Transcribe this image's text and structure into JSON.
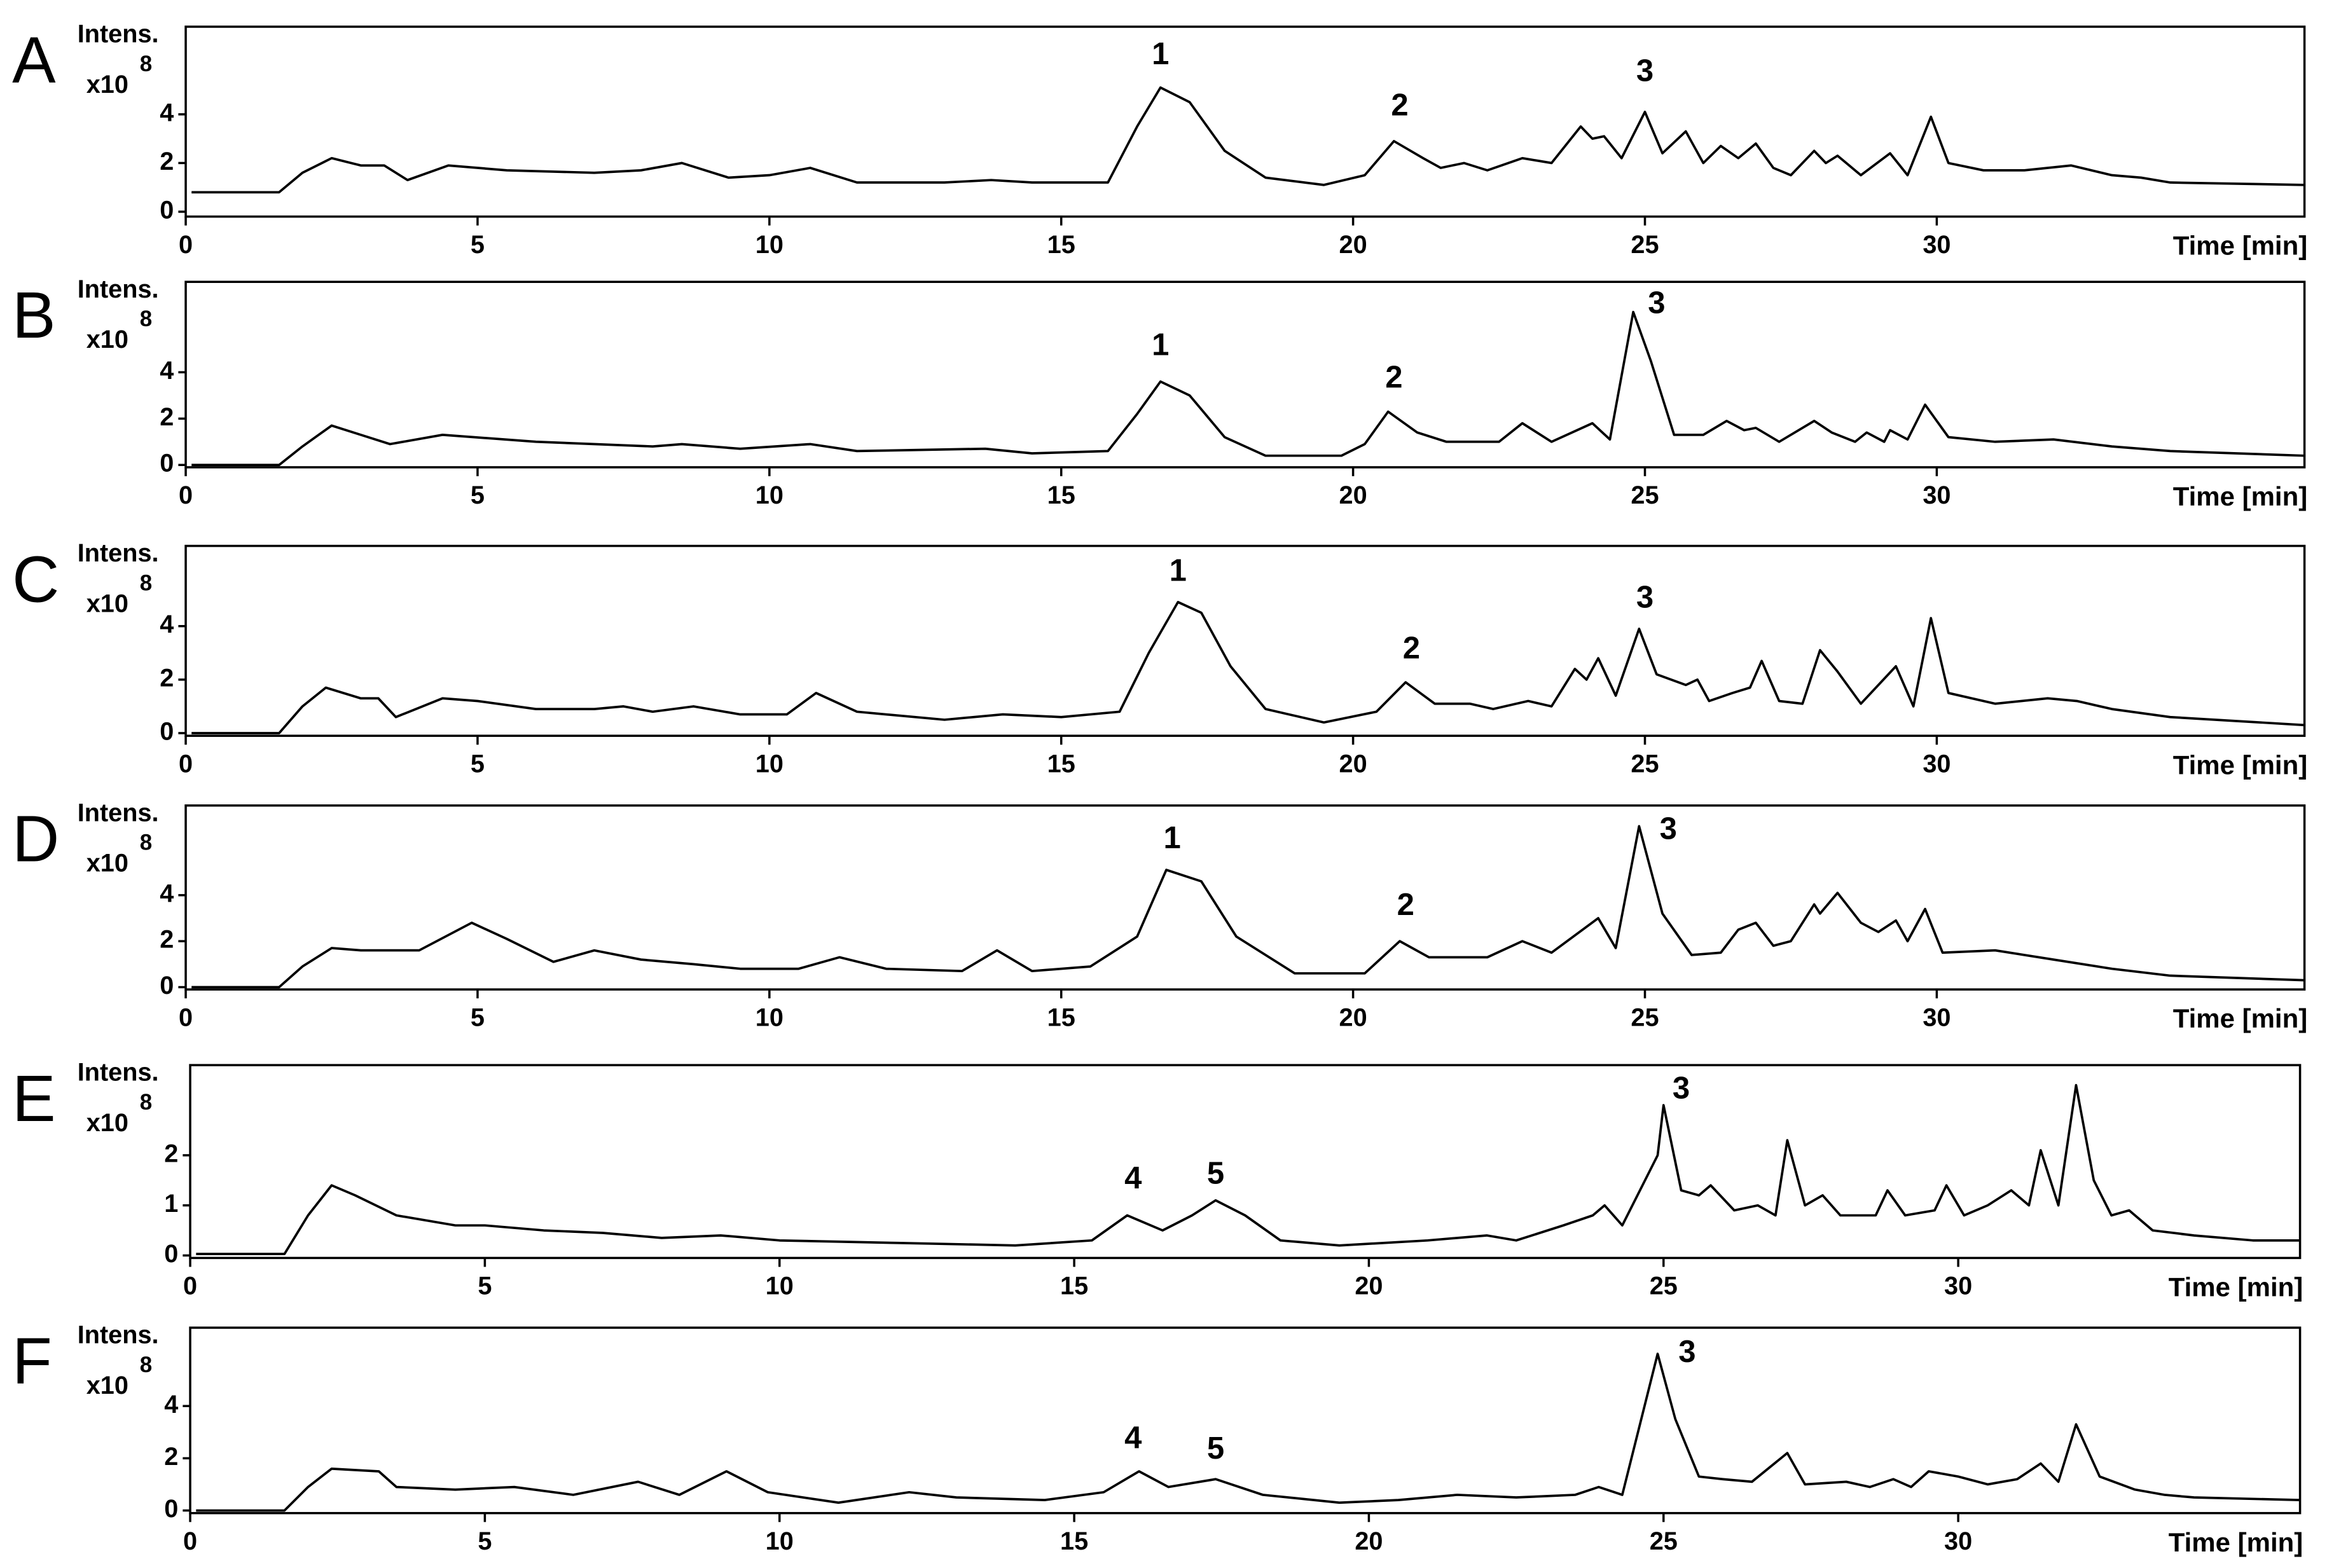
{
  "chart_data": [
    {
      "type": "line",
      "panel_label": "A",
      "y_label": "Intens.",
      "y_unit_base": "x10",
      "y_unit_exponent": "8",
      "x_label": "Time [min]",
      "x": [
        0.1,
        1.6,
        2.0,
        2.5,
        3.0,
        3.4,
        3.8,
        4.5,
        5.5,
        7,
        7.8,
        8.5,
        9.3,
        10,
        10.7,
        11.5,
        13,
        13.8,
        14.5,
        15.8,
        16.3,
        16.7,
        17.2,
        17.8,
        18.5,
        19.5,
        20.2,
        20.7,
        21.2,
        21.5,
        21.9,
        22.3,
        22.9,
        23.4,
        23.9,
        24.1,
        24.3,
        24.6,
        25.0,
        25.3,
        25.7,
        26.0,
        26.3,
        26.6,
        26.9,
        27.2,
        27.5,
        27.9,
        28.1,
        28.3,
        28.7,
        29.2,
        29.5,
        29.9,
        30.2,
        30.8,
        31.5,
        32.3,
        33,
        33.5,
        34,
        36.3
      ],
      "values": [
        0.8,
        0.8,
        1.6,
        2.2,
        1.9,
        1.9,
        1.3,
        1.9,
        1.7,
        1.6,
        1.7,
        2.0,
        1.4,
        1.5,
        1.8,
        1.2,
        1.2,
        1.3,
        1.2,
        1.2,
        3.5,
        5.1,
        4.5,
        2.5,
        1.4,
        1.1,
        1.5,
        2.9,
        2.2,
        1.8,
        2.0,
        1.7,
        2.2,
        2.0,
        3.5,
        3.0,
        3.1,
        2.2,
        4.1,
        2.4,
        3.3,
        2.0,
        2.7,
        2.2,
        2.8,
        1.8,
        1.5,
        2.5,
        2.0,
        2.3,
        1.5,
        2.4,
        1.5,
        3.9,
        2.0,
        1.7,
        1.7,
        1.9,
        1.5,
        1.4,
        1.2,
        1.1
      ],
      "color": "#000000",
      "xlim": [
        0,
        36.3
      ],
      "ylim": [
        -0.2,
        7.6
      ],
      "xticks": [
        0,
        5,
        10,
        15,
        20,
        25,
        30
      ],
      "yticks": [
        0,
        2,
        4
      ],
      "annotations": [
        {
          "text": "1",
          "x": 16.7,
          "y": 6.4
        },
        {
          "text": "2",
          "x": 20.8,
          "y": 4.3
        },
        {
          "text": "3",
          "x": 25.0,
          "y": 5.7
        }
      ]
    },
    {
      "type": "line",
      "panel_label": "B",
      "y_label": "Intens.",
      "y_unit_base": "x10",
      "y_unit_exponent": "8",
      "x_label": "Time [min]",
      "x": [
        0.1,
        1.6,
        2.0,
        2.5,
        3.0,
        3.5,
        4.4,
        6,
        8,
        8.5,
        9.5,
        10.7,
        11.5,
        13.7,
        14.5,
        15.8,
        16.3,
        16.7,
        17.2,
        17.8,
        18.5,
        19.8,
        20.2,
        20.6,
        21.1,
        21.6,
        22.5,
        22.9,
        23.4,
        24.1,
        24.4,
        24.8,
        25.1,
        25.5,
        26.0,
        26.4,
        26.7,
        26.9,
        27.3,
        27.9,
        28.2,
        28.6,
        28.8,
        29.1,
        29.2,
        29.5,
        29.8,
        30.2,
        31,
        32,
        33,
        34,
        36.3
      ],
      "values": [
        0,
        0,
        0.8,
        1.7,
        1.3,
        0.9,
        1.3,
        1.0,
        0.8,
        0.9,
        0.7,
        0.9,
        0.6,
        0.7,
        0.5,
        0.6,
        2.2,
        3.6,
        3.0,
        1.2,
        0.4,
        0.4,
        0.9,
        2.3,
        1.4,
        1.0,
        1.0,
        1.8,
        1.0,
        1.8,
        1.1,
        6.6,
        4.5,
        1.3,
        1.3,
        1.9,
        1.5,
        1.6,
        1.0,
        1.9,
        1.4,
        1.0,
        1.4,
        1.0,
        1.5,
        1.1,
        2.6,
        1.2,
        1.0,
        1.1,
        0.8,
        0.6,
        0.4
      ],
      "color": "#000000",
      "xlim": [
        0,
        36.3
      ],
      "ylim": [
        -0.1,
        7.9
      ],
      "xticks": [
        0,
        5,
        10,
        15,
        20,
        25,
        30
      ],
      "yticks": [
        0,
        2,
        4
      ],
      "annotations": [
        {
          "text": "1",
          "x": 16.7,
          "y": 5.1
        },
        {
          "text": "2",
          "x": 20.7,
          "y": 3.7
        },
        {
          "text": "3",
          "x": 25.2,
          "y": 6.9
        }
      ]
    },
    {
      "type": "line",
      "panel_label": "C",
      "y_label": "Intens.",
      "y_unit_base": "x10",
      "y_unit_exponent": "8",
      "x_label": "Time [min]",
      "x": [
        0.1,
        1.6,
        2.0,
        2.4,
        3.0,
        3.3,
        3.6,
        4.4,
        5,
        6,
        7,
        7.5,
        8,
        8.7,
        9.5,
        10.3,
        10.8,
        11.5,
        13,
        14,
        15,
        16.0,
        16.5,
        17.0,
        17.4,
        17.9,
        18.5,
        19.5,
        20.4,
        20.9,
        21.4,
        22.0,
        22.4,
        23.0,
        23.4,
        23.8,
        24.0,
        24.2,
        24.5,
        24.9,
        25.2,
        25.7,
        25.9,
        26.1,
        26.5,
        26.8,
        27.0,
        27.3,
        27.7,
        28.0,
        28.3,
        28.7,
        29.3,
        29.6,
        29.9,
        30.2,
        31,
        31.9,
        32.4,
        33,
        34,
        36.3
      ],
      "values": [
        0,
        0,
        1.0,
        1.7,
        1.3,
        1.3,
        0.6,
        1.3,
        1.2,
        0.9,
        0.9,
        1.0,
        0.8,
        1.0,
        0.7,
        0.7,
        1.5,
        0.8,
        0.5,
        0.7,
        0.6,
        0.8,
        3.0,
        4.9,
        4.5,
        2.5,
        0.9,
        0.4,
        0.8,
        1.9,
        1.1,
        1.1,
        0.9,
        1.2,
        1.0,
        2.4,
        2.0,
        2.8,
        1.4,
        3.9,
        2.2,
        1.8,
        2.0,
        1.2,
        1.5,
        1.7,
        2.7,
        1.2,
        1.1,
        3.1,
        2.3,
        1.1,
        2.5,
        1.0,
        4.3,
        1.5,
        1.1,
        1.3,
        1.2,
        0.9,
        0.6,
        0.3
      ],
      "color": "#000000",
      "xlim": [
        0,
        36.3
      ],
      "ylim": [
        -0.1,
        7.0
      ],
      "xticks": [
        0,
        5,
        10,
        15,
        20,
        25,
        30
      ],
      "yticks": [
        0,
        2,
        4
      ],
      "annotations": [
        {
          "text": "1",
          "x": 17.0,
          "y": 6.0
        },
        {
          "text": "2",
          "x": 21.0,
          "y": 3.1
        },
        {
          "text": "3",
          "x": 25.0,
          "y": 5.0
        }
      ]
    },
    {
      "type": "line",
      "panel_label": "D",
      "y_label": "Intens.",
      "y_unit_base": "x10",
      "y_unit_exponent": "8",
      "x_label": "Time [min]",
      "x": [
        0.1,
        1.6,
        2.0,
        2.5,
        3.0,
        4.0,
        4.9,
        5.5,
        6.3,
        7.0,
        7.8,
        8.7,
        9.5,
        10.5,
        11.2,
        12,
        13.3,
        13.9,
        14.5,
        15.5,
        16.3,
        16.8,
        17.4,
        18,
        19,
        20.2,
        20.8,
        21.3,
        22.3,
        22.9,
        23.4,
        24.2,
        24.5,
        24.9,
        25.3,
        25.8,
        26.3,
        26.6,
        26.9,
        27.2,
        27.5,
        27.9,
        28.0,
        28.3,
        28.7,
        29.0,
        29.3,
        29.5,
        29.8,
        30.1,
        31,
        32,
        33,
        34,
        36.3
      ],
      "values": [
        0,
        0,
        0.9,
        1.7,
        1.6,
        1.6,
        2.8,
        2.1,
        1.1,
        1.6,
        1.2,
        1.0,
        0.8,
        0.8,
        1.3,
        0.8,
        0.7,
        1.6,
        0.7,
        0.9,
        2.2,
        5.1,
        4.6,
        2.2,
        0.6,
        0.6,
        2.0,
        1.3,
        1.3,
        2.0,
        1.5,
        3.0,
        1.7,
        7.0,
        3.2,
        1.4,
        1.5,
        2.5,
        2.8,
        1.8,
        2.0,
        3.6,
        3.2,
        4.1,
        2.8,
        2.4,
        2.9,
        2.0,
        3.4,
        1.5,
        1.6,
        1.2,
        0.8,
        0.5,
        0.3
      ],
      "color": "#000000",
      "xlim": [
        0,
        36.3
      ],
      "ylim": [
        -0.1,
        7.9
      ],
      "xticks": [
        0,
        5,
        10,
        15,
        20,
        25,
        30
      ],
      "yticks": [
        0,
        2,
        4
      ],
      "annotations": [
        {
          "text": "1",
          "x": 16.9,
          "y": 6.4
        },
        {
          "text": "2",
          "x": 20.9,
          "y": 3.5
        },
        {
          "text": "3",
          "x": 25.4,
          "y": 6.8
        }
      ]
    },
    {
      "type": "line",
      "panel_label": "E",
      "y_label": "Intens.",
      "y_unit_base": "x10",
      "y_unit_exponent": "8",
      "x_label": "Time [min]",
      "x": [
        0.1,
        1.6,
        2.0,
        2.4,
        2.8,
        3.5,
        4.5,
        5,
        6,
        7,
        8,
        9,
        10,
        12,
        14,
        15.3,
        15.9,
        16.5,
        17.0,
        17.4,
        17.9,
        18.5,
        19.5,
        21,
        22,
        22.5,
        23.3,
        23.8,
        24.0,
        24.3,
        24.9,
        25.0,
        25.3,
        25.6,
        25.8,
        26.2,
        26.6,
        26.9,
        27.1,
        27.4,
        27.7,
        28.0,
        28.6,
        28.8,
        29.1,
        29.6,
        29.8,
        30.1,
        30.5,
        30.9,
        31.2,
        31.4,
        31.7,
        32.0,
        32.3,
        32.6,
        32.9,
        33.3,
        34,
        35,
        35.8
      ],
      "values": [
        0.03,
        0.03,
        0.8,
        1.4,
        1.2,
        0.8,
        0.6,
        0.6,
        0.5,
        0.45,
        0.35,
        0.4,
        0.3,
        0.25,
        0.2,
        0.3,
        0.8,
        0.5,
        0.8,
        1.1,
        0.8,
        0.3,
        0.2,
        0.3,
        0.4,
        0.3,
        0.6,
        0.8,
        1.0,
        0.6,
        2.0,
        3.0,
        1.3,
        1.2,
        1.4,
        0.9,
        1.0,
        0.8,
        2.3,
        1.0,
        1.2,
        0.8,
        0.8,
        1.3,
        0.8,
        0.9,
        1.4,
        0.8,
        1.0,
        1.3,
        1.0,
        2.1,
        1.0,
        3.4,
        1.5,
        0.8,
        0.9,
        0.5,
        0.4,
        0.3,
        0.3
      ],
      "color": "#000000",
      "xlim": [
        0,
        35.8
      ],
      "ylim": [
        -0.05,
        3.8
      ],
      "xticks": [
        0,
        5,
        10,
        15,
        20,
        25,
        30
      ],
      "yticks": [
        0,
        1,
        2
      ],
      "annotations": [
        {
          "text": "4",
          "x": 16.0,
          "y": 1.5
        },
        {
          "text": "5",
          "x": 17.4,
          "y": 1.6
        },
        {
          "text": "3",
          "x": 25.3,
          "y": 3.3
        }
      ]
    },
    {
      "type": "line",
      "panel_label": "F",
      "y_label": "Intens.",
      "y_unit_base": "x10",
      "y_unit_exponent": "8",
      "x_label": "Time [min]",
      "x": [
        0.1,
        1.6,
        2.0,
        2.4,
        3.2,
        3.5,
        4.5,
        5.5,
        6.5,
        7.6,
        8.3,
        9.1,
        9.8,
        11,
        12.2,
        13,
        14.5,
        15.5,
        16.1,
        16.6,
        17.4,
        18.2,
        19.5,
        20.5,
        21.5,
        22.5,
        23.5,
        23.9,
        24.3,
        24.9,
        25.2,
        25.6,
        26,
        26.5,
        27.1,
        27.4,
        28.1,
        28.5,
        28.9,
        29.2,
        29.5,
        30,
        30.5,
        31,
        31.4,
        31.7,
        32.0,
        32.4,
        33,
        33.5,
        34,
        35.8
      ],
      "values": [
        0,
        0,
        0.9,
        1.6,
        1.5,
        0.9,
        0.8,
        0.9,
        0.6,
        1.1,
        0.6,
        1.5,
        0.7,
        0.3,
        0.7,
        0.5,
        0.4,
        0.7,
        1.5,
        0.9,
        1.2,
        0.6,
        0.3,
        0.4,
        0.6,
        0.5,
        0.6,
        0.9,
        0.6,
        6.0,
        3.5,
        1.3,
        1.2,
        1.1,
        2.2,
        1.0,
        1.1,
        0.9,
        1.2,
        0.9,
        1.5,
        1.3,
        1.0,
        1.2,
        1.8,
        1.1,
        3.3,
        1.3,
        0.8,
        0.6,
        0.5,
        0.4
      ],
      "color": "#000000",
      "xlim": [
        0,
        35.8
      ],
      "ylim": [
        -0.1,
        7.0
      ],
      "xticks": [
        0,
        5,
        10,
        15,
        20,
        25,
        30
      ],
      "yticks": [
        0,
        2,
        4
      ],
      "annotations": [
        {
          "text": "4",
          "x": 16.0,
          "y": 2.7
        },
        {
          "text": "5",
          "x": 17.4,
          "y": 2.3
        },
        {
          "text": "3",
          "x": 25.4,
          "y": 6.0
        }
      ]
    }
  ]
}
